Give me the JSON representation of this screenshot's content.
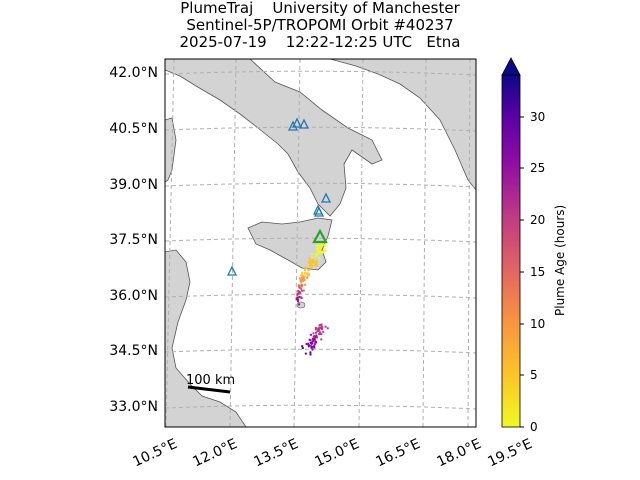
{
  "title": {
    "line1": "PlumeTraj    University of Manchester",
    "line2": "Sentinel-5P/TROPOMI Orbit #40237",
    "line3": "2025-07-19    12:22-12:25 UTC   Etna"
  },
  "map": {
    "lat_labels": [
      "42.0°N",
      "40.5°N",
      "39.0°N",
      "37.5°N",
      "36.0°N",
      "34.5°N",
      "33.0°N"
    ],
    "lon_labels": [
      "10.5°E",
      "12.0°E",
      "13.5°E",
      "15.0°E",
      "16.5°E",
      "18.0°E",
      "19.5°E"
    ],
    "scale_bar_label": "100 km",
    "volcano_name": "Etna",
    "land_color": "#d3d3d3",
    "sea_color": "#ffffff",
    "other_volcano_color": "#1f77b4",
    "etna_marker_color": "#2ca02c"
  },
  "colorbar": {
    "label": "Plume Age (hours)",
    "ticks": [
      "0",
      "5",
      "10",
      "15",
      "20",
      "25",
      "30"
    ],
    "min": 0,
    "max": 34,
    "colormap": "plasma_r"
  }
}
